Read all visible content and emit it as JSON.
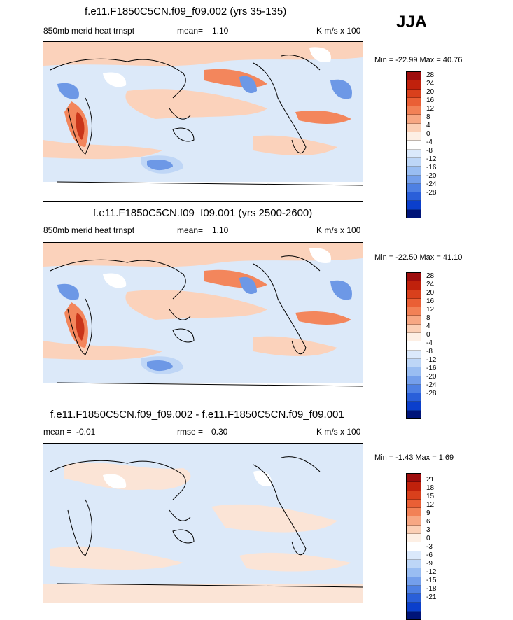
{
  "season": "JJA",
  "panels": [
    {
      "title": "f.e11.F1850C5CN.f09_f09.002 (yrs 35-135)",
      "variable": "850mb merid heat trnspt",
      "stat_label": "mean=",
      "stat_value": "1.10",
      "units": "K m/s x 100",
      "minmax": "Min = -22.99 Max =  40.76",
      "colorbar_labels": [
        "28",
        "24",
        "20",
        "16",
        "12",
        "8",
        "4",
        "0",
        "-4",
        "-8",
        "-12",
        "-16",
        "-20",
        "-24",
        "-28"
      ]
    },
    {
      "title": "f.e11.F1850C5CN.f09_f09.001 (yrs 2500-2600)",
      "variable": "850mb merid heat trnspt",
      "stat_label": "mean=",
      "stat_value": "1.10",
      "units": "K m/s x 100",
      "minmax": "Min = -22.50 Max =  41.10",
      "colorbar_labels": [
        "28",
        "24",
        "20",
        "16",
        "12",
        "8",
        "4",
        "0",
        "-4",
        "-8",
        "-12",
        "-16",
        "-20",
        "-24",
        "-28"
      ]
    },
    {
      "title": "f.e11.F1850C5CN.f09_f09.002 - f.e11.F1850C5CN.f09_f09.001",
      "mean_label": "mean =",
      "mean_value": "-0.01",
      "rmse_label": "rmse =",
      "rmse_value": "0.30",
      "units": "K m/s x 100",
      "minmax": "Min =  -1.43 Max =   1.69",
      "colorbar_labels": [
        "21",
        "18",
        "15",
        "12",
        "9",
        "6",
        "3",
        "0",
        "-3",
        "-6",
        "-9",
        "-12",
        "-15",
        "-18",
        "-21"
      ]
    }
  ],
  "colorbar_colors": [
    "#9e0d0d",
    "#c0210c",
    "#d9401c",
    "#ea5f35",
    "#f28156",
    "#f7a783",
    "#fbcfb5",
    "#fdefe4",
    "#ffffff",
    "#dbe9fb",
    "#bdd6f7",
    "#99bdf2",
    "#749feb",
    "#4e80e3",
    "#2a5fd9",
    "#0b3fcc",
    "#06259e",
    "#001478"
  ],
  "map_colors": {
    "background": "#dce9f9",
    "light_red": "#fbd2bb",
    "red": "#f3865c",
    "dark_red": "#c9351a",
    "light_blue": "#bfd6f6",
    "blue": "#6d98e6",
    "dark_blue": "#2b56c9",
    "land_line": "#000000"
  }
}
